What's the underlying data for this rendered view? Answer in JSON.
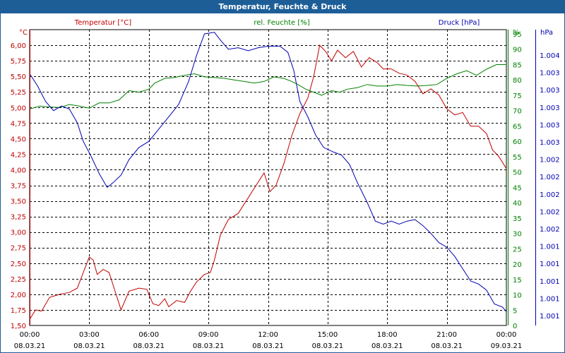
{
  "window": {
    "title": "Temperatur, Feuchte & Druck"
  },
  "colors": {
    "temperature": "#c00000",
    "humidity": "#008000",
    "pressure": "#0000b0",
    "grid": "#000000",
    "titlebar": "#1d5e98"
  },
  "chart_data": {
    "type": "line",
    "title": "Temperatur, Feuchte & Druck",
    "grid": true,
    "x_ticks": [
      {
        "time": "00:00",
        "date": "08.03.21"
      },
      {
        "time": "03:00",
        "date": "08.03.21"
      },
      {
        "time": "06:00",
        "date": "08.03.21"
      },
      {
        "time": "09:00",
        "date": "08.03.21"
      },
      {
        "time": "12:00",
        "date": "08.03.21"
      },
      {
        "time": "15:00",
        "date": "08.03.21"
      },
      {
        "time": "18:00",
        "date": "08.03.21"
      },
      {
        "time": "21:00",
        "date": "08.03.21"
      },
      {
        "time": "00:00",
        "date": "09.03.21"
      }
    ],
    "x_unit": "hours",
    "xlim": [
      0,
      24
    ],
    "axes": {
      "temperature": {
        "unit_label": "°C",
        "legend_label": "Temperatur [°C]",
        "ylim": [
          1.5,
          6.25
        ],
        "ticks": [
          "1,50",
          "1,75",
          "2,00",
          "2,25",
          "2,50",
          "2,75",
          "3,00",
          "3,25",
          "3,50",
          "3,75",
          "4,00",
          "4,25",
          "4,50",
          "4,75",
          "5,00",
          "5,25",
          "5,50",
          "5,75",
          "6,00"
        ]
      },
      "humidity": {
        "unit_label": "%",
        "legend_label": "rel. Feuchte [%]",
        "ylim": [
          0,
          95
        ],
        "ticks": [
          "0",
          "5",
          "10",
          "15",
          "20",
          "25",
          "30",
          "35",
          "40",
          "45",
          "50",
          "55",
          "60",
          "65",
          "70",
          "75",
          "80",
          "85",
          "90",
          "95",
          "%"
        ]
      },
      "pressure": {
        "unit_label": "hPa",
        "legend_label": "Druck [hPa]",
        "ticks": [
          "1.001",
          "1.001",
          "1.001",
          "1.001",
          "1.001",
          "1.002",
          "1.002",
          "1.002",
          "1.002",
          "1.002",
          "1.003",
          "1.003",
          "1.003",
          "1.003",
          "1.003",
          "1.004"
        ]
      }
    },
    "series": [
      {
        "name": "Temperatur [°C]",
        "axis": "temperature",
        "color": "#c00000",
        "points": [
          [
            0,
            1.6
          ],
          [
            0.3,
            1.75
          ],
          [
            0.6,
            1.73
          ],
          [
            1,
            1.95
          ],
          [
            1.5,
            2.0
          ],
          [
            2,
            2.03
          ],
          [
            2.4,
            2.1
          ],
          [
            2.7,
            2.35
          ],
          [
            3,
            2.6
          ],
          [
            3.2,
            2.55
          ],
          [
            3.4,
            2.32
          ],
          [
            3.7,
            2.4
          ],
          [
            4,
            2.35
          ],
          [
            4.3,
            2.05
          ],
          [
            4.6,
            1.75
          ],
          [
            5,
            2.05
          ],
          [
            5.5,
            2.1
          ],
          [
            5.9,
            2.08
          ],
          [
            6.2,
            1.85
          ],
          [
            6.5,
            1.82
          ],
          [
            6.8,
            1.93
          ],
          [
            7,
            1.8
          ],
          [
            7.4,
            1.9
          ],
          [
            7.8,
            1.87
          ],
          [
            8.1,
            2.05
          ],
          [
            8.4,
            2.2
          ],
          [
            8.8,
            2.32
          ],
          [
            9.1,
            2.35
          ],
          [
            9.3,
            2.55
          ],
          [
            9.6,
            2.95
          ],
          [
            10,
            3.2
          ],
          [
            10.5,
            3.3
          ],
          [
            11,
            3.55
          ],
          [
            11.4,
            3.75
          ],
          [
            11.8,
            3.95
          ],
          [
            12.1,
            3.65
          ],
          [
            12.4,
            3.75
          ],
          [
            12.8,
            4.1
          ],
          [
            13.2,
            4.55
          ],
          [
            13.6,
            4.9
          ],
          [
            14.0,
            5.15
          ],
          [
            14.3,
            5.5
          ],
          [
            14.6,
            6.0
          ],
          [
            14.9,
            5.9
          ],
          [
            15.2,
            5.75
          ],
          [
            15.5,
            5.92
          ],
          [
            15.9,
            5.8
          ],
          [
            16.3,
            5.9
          ],
          [
            16.7,
            5.65
          ],
          [
            17.1,
            5.8
          ],
          [
            17.5,
            5.72
          ],
          [
            17.8,
            5.62
          ],
          [
            18.2,
            5.62
          ],
          [
            18.6,
            5.55
          ],
          [
            19,
            5.52
          ],
          [
            19.4,
            5.42
          ],
          [
            19.8,
            5.22
          ],
          [
            20.2,
            5.3
          ],
          [
            20.6,
            5.2
          ],
          [
            21,
            4.98
          ],
          [
            21.4,
            4.88
          ],
          [
            21.8,
            4.92
          ],
          [
            22.2,
            4.7
          ],
          [
            22.6,
            4.7
          ],
          [
            23,
            4.58
          ],
          [
            23.3,
            4.32
          ],
          [
            23.6,
            4.22
          ],
          [
            24,
            4.02
          ]
        ]
      },
      {
        "name": "rel. Feuchte [%]",
        "axis": "humidity",
        "color": "#008000",
        "points": [
          [
            0,
            70.5
          ],
          [
            0.5,
            71.5
          ],
          [
            1,
            71.2
          ],
          [
            1.5,
            71.0
          ],
          [
            2,
            72.0
          ],
          [
            2.5,
            71.5
          ],
          [
            3,
            70.8
          ],
          [
            3.5,
            72.5
          ],
          [
            4,
            72.5
          ],
          [
            4.5,
            73.5
          ],
          [
            5,
            76.5
          ],
          [
            5.5,
            76.0
          ],
          [
            6,
            77.0
          ],
          [
            6.3,
            79.0
          ],
          [
            6.8,
            80.5
          ],
          [
            7.3,
            80.8
          ],
          [
            7.8,
            81.5
          ],
          [
            8.3,
            82.0
          ],
          [
            8.8,
            81.0
          ],
          [
            9.3,
            80.8
          ],
          [
            9.8,
            80.5
          ],
          [
            10.3,
            80.0
          ],
          [
            10.8,
            79.5
          ],
          [
            11.3,
            79.0
          ],
          [
            11.8,
            79.5
          ],
          [
            12.3,
            81.0
          ],
          [
            12.8,
            80.5
          ],
          [
            13.2,
            79.5
          ],
          [
            13.5,
            78.5
          ],
          [
            13.9,
            77.0
          ],
          [
            14.3,
            76.0
          ],
          [
            14.7,
            75.0
          ],
          [
            15.2,
            76.5
          ],
          [
            15.6,
            76.0
          ],
          [
            16,
            77.0
          ],
          [
            16.5,
            77.5
          ],
          [
            17,
            78.5
          ],
          [
            17.5,
            78.0
          ],
          [
            18,
            78.0
          ],
          [
            18.5,
            78.5
          ],
          [
            19,
            78.2
          ],
          [
            19.5,
            78.0
          ],
          [
            20,
            78.2
          ],
          [
            20.5,
            78.5
          ],
          [
            21,
            80.5
          ],
          [
            21.5,
            82.0
          ],
          [
            22,
            83.0
          ],
          [
            22.5,
            81.5
          ],
          [
            23,
            83.5
          ],
          [
            23.5,
            85.0
          ],
          [
            24,
            85.0
          ]
        ]
      },
      {
        "name": "Druck [hPa]",
        "axis": "pressure",
        "color": "#0000b0",
        "points": [
          [
            0,
            82.0
          ],
          [
            0.4,
            78.0
          ],
          [
            0.8,
            73.0
          ],
          [
            1.2,
            70.0
          ],
          [
            1.6,
            71.5
          ],
          [
            2,
            70.5
          ],
          [
            2.4,
            66.0
          ],
          [
            2.7,
            60.0
          ],
          [
            3.1,
            55.0
          ],
          [
            3.5,
            49.5
          ],
          [
            3.9,
            45.0
          ],
          [
            4.2,
            46.5
          ],
          [
            4.6,
            49.0
          ],
          [
            5,
            54.0
          ],
          [
            5.5,
            58.0
          ],
          [
            6,
            60.0
          ],
          [
            6.5,
            64.0
          ],
          [
            7,
            68.0
          ],
          [
            7.5,
            72.0
          ],
          [
            8,
            79.5
          ],
          [
            8.4,
            88.0
          ],
          [
            8.8,
            95.0
          ],
          [
            9.3,
            95.5
          ],
          [
            9.6,
            93.0
          ],
          [
            10,
            90.0
          ],
          [
            10.5,
            90.5
          ],
          [
            11,
            89.5
          ],
          [
            11.5,
            90.5
          ],
          [
            12,
            91.0
          ],
          [
            12.6,
            91.0
          ],
          [
            13,
            89.0
          ],
          [
            13.3,
            83.0
          ],
          [
            13.6,
            73.0
          ],
          [
            14,
            68.0
          ],
          [
            14.4,
            62.0
          ],
          [
            14.8,
            58.0
          ],
          [
            15.3,
            56.5
          ],
          [
            15.7,
            55.5
          ],
          [
            16.1,
            52.5
          ],
          [
            16.5,
            46.5
          ],
          [
            17,
            40.0
          ],
          [
            17.4,
            34.0
          ],
          [
            17.8,
            33.0
          ],
          [
            18.2,
            34.0
          ],
          [
            18.6,
            33.0
          ],
          [
            19,
            34.0
          ],
          [
            19.4,
            34.5
          ],
          [
            19.8,
            32.5
          ],
          [
            20.2,
            30.0
          ],
          [
            20.6,
            27.0
          ],
          [
            21,
            25.5
          ],
          [
            21.4,
            22.5
          ],
          [
            21.8,
            18.5
          ],
          [
            22.2,
            14.5
          ],
          [
            22.6,
            13.5
          ],
          [
            23,
            11.5
          ],
          [
            23.4,
            7.0
          ],
          [
            23.8,
            6.0
          ],
          [
            24,
            4.5
          ]
        ]
      }
    ]
  }
}
